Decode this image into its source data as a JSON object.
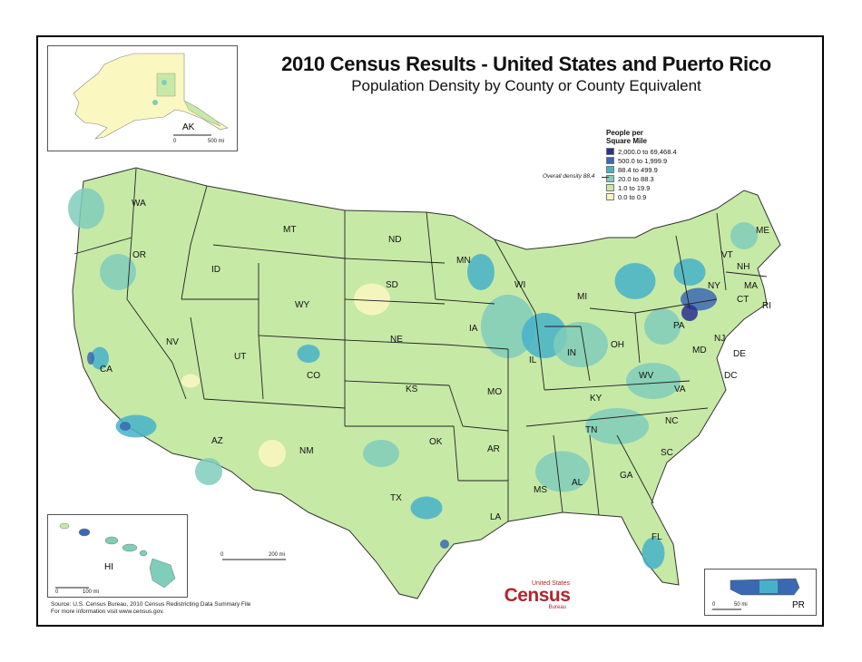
{
  "title": "2010 Census Results - United States and Puerto Rico",
  "subtitle": "Population Density by County or County Equivalent",
  "legend": {
    "title_line1": "People per",
    "title_line2": "Square Mile",
    "classes": [
      {
        "label": "2,000.0 to 69,468.4",
        "color": "#2b2f8f"
      },
      {
        "label": "500.0 to 1,999.9",
        "color": "#3b68b2"
      },
      {
        "label": "88.4 to 499.9",
        "color": "#46b1c9"
      },
      {
        "label": "20.0 to 88.3",
        "color": "#7fcdbb"
      },
      {
        "label": "1.0 to 19.9",
        "color": "#c7e9a6"
      },
      {
        "label": "0.0 to 0.9",
        "color": "#fbf7c0"
      }
    ],
    "overall_density": "Overall density 88.4"
  },
  "states": [
    "WA",
    "OR",
    "CA",
    "ID",
    "NV",
    "MT",
    "WY",
    "UT",
    "AZ",
    "CO",
    "NM",
    "ND",
    "SD",
    "NE",
    "KS",
    "OK",
    "TX",
    "MN",
    "IA",
    "MO",
    "AR",
    "LA",
    "WI",
    "IL",
    "MI",
    "IN",
    "OH",
    "KY",
    "TN",
    "MS",
    "AL",
    "GA",
    "FL",
    "SC",
    "NC",
    "VA",
    "WV",
    "PA",
    "NY",
    "VT",
    "NH",
    "ME",
    "MA",
    "CT",
    "RI",
    "NJ",
    "DE",
    "MD",
    "DC"
  ],
  "insets": {
    "alaska": {
      "label": "AK",
      "scale_start": "0",
      "scale_end": "500 mi"
    },
    "hawaii": {
      "label": "HI",
      "scale_start": "0",
      "scale_end": "100 mi"
    },
    "puerto_rico": {
      "label": "PR",
      "scale_start": "0",
      "scale_end": "50 mi"
    }
  },
  "main_scale": {
    "start": "0",
    "end": "200 mi"
  },
  "source": {
    "line1": "Source: U.S. Census Bureau, 2010 Census Redistricting Data Summary File",
    "line2": "For more information visit www.census.gov."
  },
  "logo": {
    "top": "United States",
    "main": "Census",
    "bottom": "Bureau"
  }
}
